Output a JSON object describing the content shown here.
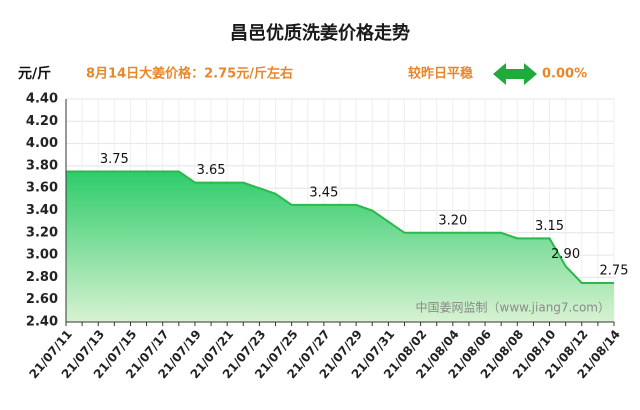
{
  "chart_data": {
    "type": "area",
    "title": "昌邑优质洗姜价格走势",
    "y_label": "元/斤",
    "subtitle": "8月14日大姜价格：2.75元/斤左右",
    "change_text": "较昨日平稳",
    "change_value": "0.00%",
    "watermark": "中国姜网监制（www.jiang7.com）",
    "categories": [
      "21/07/11",
      null,
      "21/07/13",
      null,
      "21/07/15",
      null,
      "21/07/17",
      null,
      "21/07/19",
      null,
      "21/07/21",
      null,
      "21/07/23",
      null,
      "21/07/25",
      null,
      "21/07/27",
      null,
      "21/07/29",
      null,
      "21/07/31",
      null,
      "21/08/02",
      null,
      "21/08/04",
      null,
      "21/08/06",
      null,
      "21/08/08",
      null,
      "21/08/10",
      null,
      "21/08/12",
      null,
      "21/08/14"
    ],
    "values": [
      3.75,
      3.75,
      3.75,
      3.75,
      3.75,
      3.75,
      3.75,
      3.75,
      3.65,
      3.65,
      3.65,
      3.65,
      3.6,
      3.55,
      3.45,
      3.45,
      3.45,
      3.45,
      3.45,
      3.4,
      3.3,
      3.2,
      3.2,
      3.2,
      3.2,
      3.2,
      3.2,
      3.2,
      3.15,
      3.15,
      3.15,
      2.9,
      2.75,
      2.75,
      2.75
    ],
    "value_labels": [
      null,
      null,
      null,
      "3.75",
      null,
      null,
      null,
      null,
      null,
      "3.65",
      null,
      null,
      null,
      null,
      null,
      null,
      "3.45",
      null,
      null,
      null,
      null,
      null,
      null,
      null,
      "3.20",
      null,
      null,
      null,
      null,
      null,
      "3.15",
      "2.90",
      null,
      null,
      "2.75"
    ],
    "color": "#2db84d",
    "ylim": [
      2.4,
      4.4
    ],
    "yticks": [
      {
        "value": 2.4,
        "label": "2.40"
      },
      {
        "value": 2.6,
        "label": "2.60"
      },
      {
        "value": 2.8,
        "label": "2.80"
      },
      {
        "value": 3.0,
        "label": "3.00"
      },
      {
        "value": 3.2,
        "label": "3.20"
      },
      {
        "value": 3.4,
        "label": "3.40"
      },
      {
        "value": 3.6,
        "label": "3.60"
      },
      {
        "value": 3.8,
        "label": "3.80"
      },
      {
        "value": 4.0,
        "label": "4.00"
      },
      {
        "value": 4.2,
        "label": "4.20"
      },
      {
        "value": 4.4,
        "label": "4.40"
      }
    ],
    "grid": true
  }
}
